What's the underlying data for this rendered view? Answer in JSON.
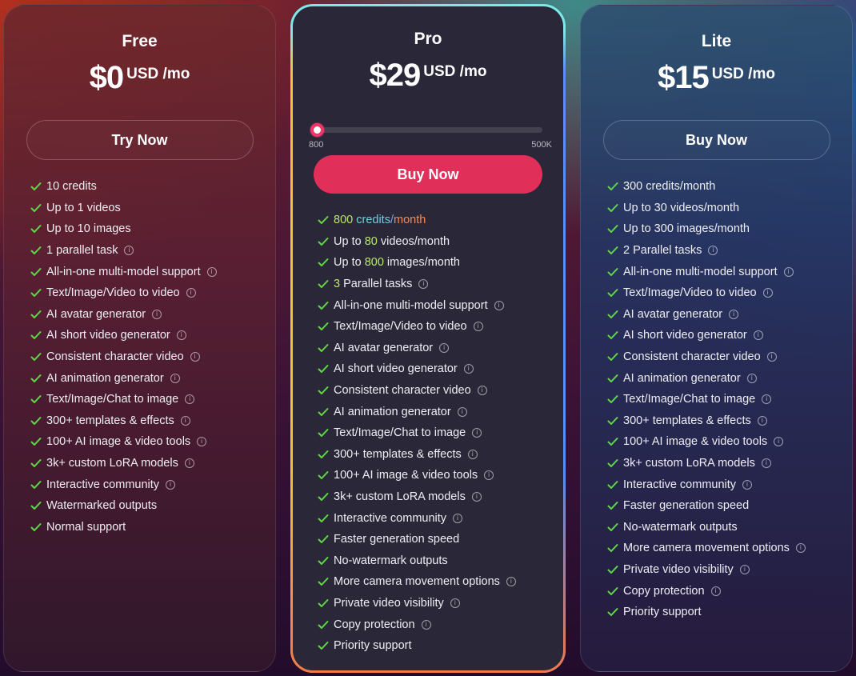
{
  "plans": {
    "free": {
      "name": "Free",
      "price": "$0",
      "price_unit": "USD /mo",
      "cta": "Try Now",
      "features": [
        {
          "text": "10 credits",
          "info": false
        },
        {
          "text": "Up to 1 videos",
          "info": false
        },
        {
          "text": "Up to 10 images",
          "info": false
        },
        {
          "text": "1 parallel task",
          "info": true
        },
        {
          "text": "All-in-one multi-model support",
          "info": true
        },
        {
          "text": "Text/Image/Video to video",
          "info": true
        },
        {
          "text": "AI avatar generator",
          "info": true
        },
        {
          "text": "AI short video generator",
          "info": true
        },
        {
          "text": "Consistent character video",
          "info": true
        },
        {
          "text": "AI animation generator",
          "info": true
        },
        {
          "text": "Text/Image/Chat to image",
          "info": true
        },
        {
          "text": "300+ templates & effects",
          "info": true
        },
        {
          "text": "100+ AI image & video tools",
          "info": true
        },
        {
          "text": "3k+ custom LoRA models",
          "info": true
        },
        {
          "text": "Interactive community",
          "info": true
        },
        {
          "text": "Watermarked outputs",
          "info": false
        },
        {
          "text": "Normal support",
          "info": false
        }
      ]
    },
    "pro": {
      "name": "Pro",
      "price": "$29",
      "price_unit": "USD /mo",
      "slider": {
        "min_label": "800",
        "max_label": "500K",
        "value": "800"
      },
      "cta": "Buy Now",
      "accent_color": "#e0305a",
      "highlight": {
        "credits_num": "800",
        "credits_word": "credits",
        "slash": "/",
        "month_word": "month",
        "videos_prefix": "Up to ",
        "videos_num": "80",
        "videos_suffix": " videos/month",
        "images_prefix": "Up to ",
        "images_num": "800",
        "images_suffix": " images/month",
        "tasks_num": "3",
        "tasks_suffix": " Parallel tasks"
      },
      "features": [
        {
          "text": "All-in-one multi-model support",
          "info": true
        },
        {
          "text": "Text/Image/Video to video",
          "info": true
        },
        {
          "text": "AI avatar generator",
          "info": true
        },
        {
          "text": "AI short video generator",
          "info": true
        },
        {
          "text": "Consistent character video",
          "info": true
        },
        {
          "text": "AI animation generator",
          "info": true
        },
        {
          "text": "Text/Image/Chat to image",
          "info": true
        },
        {
          "text": "300+ templates & effects",
          "info": true
        },
        {
          "text": "100+ AI image & video tools",
          "info": true
        },
        {
          "text": "3k+ custom LoRA models",
          "info": true
        },
        {
          "text": "Interactive community",
          "info": true
        },
        {
          "text": "Faster generation speed",
          "info": false
        },
        {
          "text": "No-watermark outputs",
          "info": false
        },
        {
          "text": "More camera movement options",
          "info": true
        },
        {
          "text": "Private video visibility",
          "info": true
        },
        {
          "text": "Copy protection",
          "info": true
        },
        {
          "text": "Priority support",
          "info": false
        }
      ]
    },
    "lite": {
      "name": "Lite",
      "price": "$15",
      "price_unit": "USD /mo",
      "cta": "Buy Now",
      "features": [
        {
          "text": "300 credits/month",
          "info": false
        },
        {
          "text": "Up to 30 videos/month",
          "info": false
        },
        {
          "text": "Up to 300 images/month",
          "info": false
        },
        {
          "text": "2 Parallel tasks",
          "info": true
        },
        {
          "text": "All-in-one multi-model support",
          "info": true
        },
        {
          "text": "Text/Image/Video to video",
          "info": true
        },
        {
          "text": "AI avatar generator",
          "info": true
        },
        {
          "text": "AI short video generator",
          "info": true
        },
        {
          "text": "Consistent character video",
          "info": true
        },
        {
          "text": "AI animation generator",
          "info": true
        },
        {
          "text": "Text/Image/Chat to image",
          "info": true
        },
        {
          "text": "300+ templates & effects",
          "info": true
        },
        {
          "text": "100+ AI image & video tools",
          "info": true
        },
        {
          "text": "3k+ custom LoRA models",
          "info": true
        },
        {
          "text": "Interactive community",
          "info": true
        },
        {
          "text": "Faster generation speed",
          "info": false
        },
        {
          "text": "No-watermark outputs",
          "info": false
        },
        {
          "text": "More camera movement options",
          "info": true
        },
        {
          "text": "Private video visibility",
          "info": true
        },
        {
          "text": "Copy protection",
          "info": true
        },
        {
          "text": "Priority support",
          "info": false
        }
      ]
    }
  },
  "icons": {
    "check": "check-icon",
    "info": "info-icon",
    "info_glyph": "i"
  },
  "colors": {
    "check_green": "#5fd846",
    "pro_card_bg": "#2a2838",
    "pro_button": "#e0305a",
    "slider_thumb_ring": "#f0356a"
  }
}
